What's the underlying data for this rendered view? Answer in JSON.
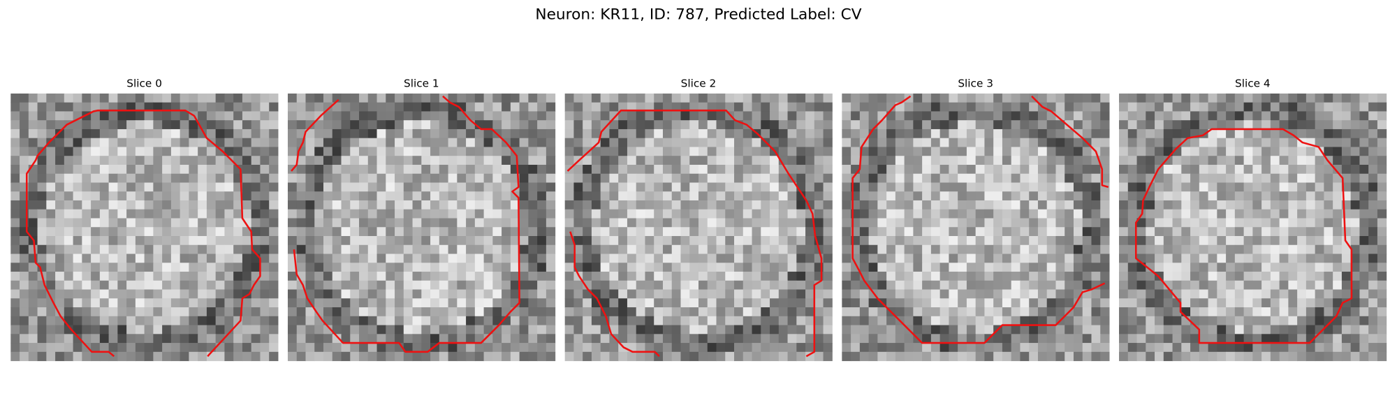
{
  "title": "Neuron: KR11, ID: 787, Predicted Label: CV",
  "panels": [
    "Slice 0",
    "Slice 1",
    "Slice 2",
    "Slice 3",
    "Slice 4"
  ]
}
